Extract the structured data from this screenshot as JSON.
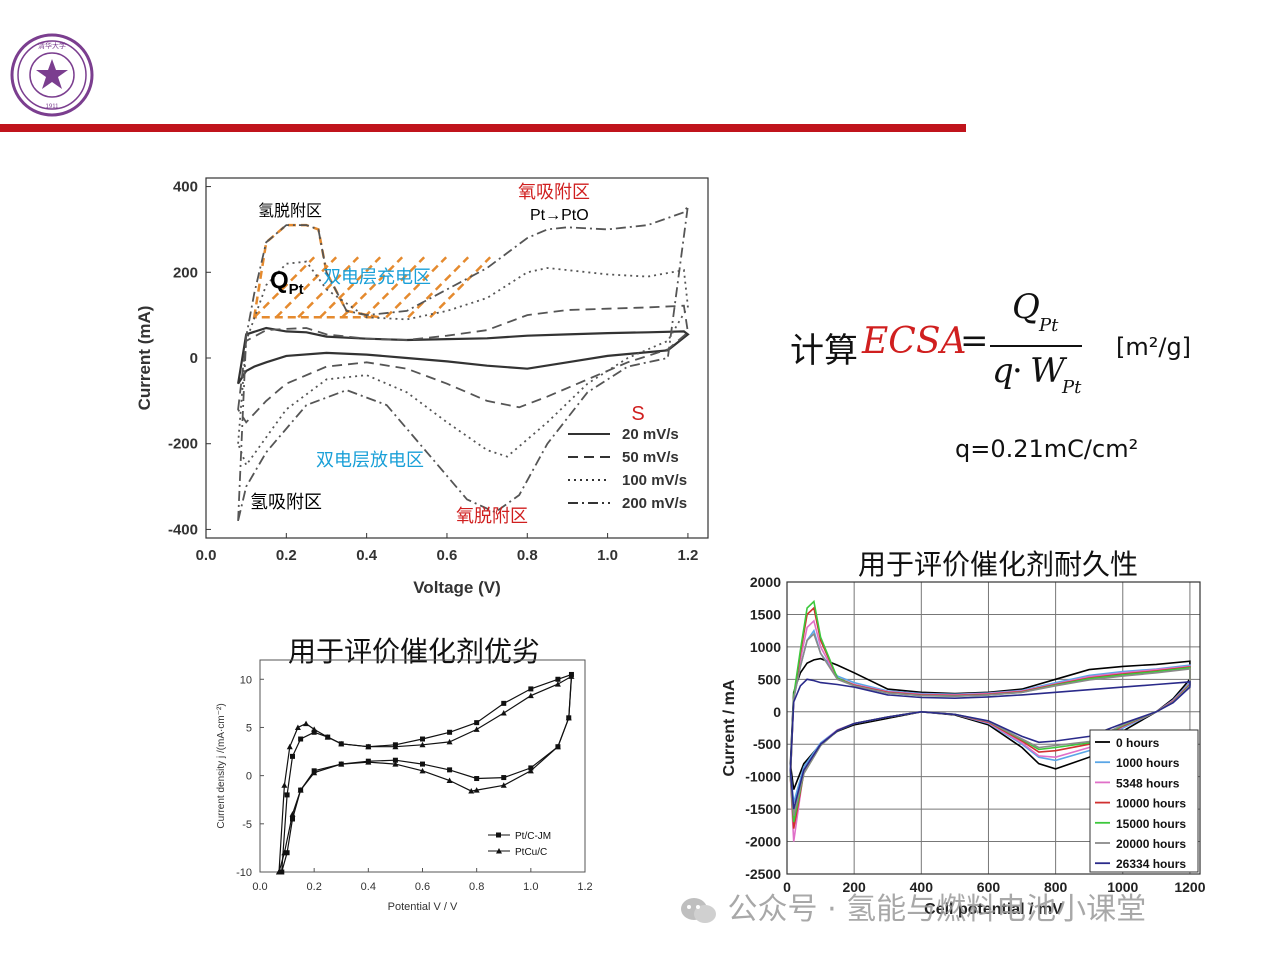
{
  "logo": {
    "icon": "university-seal-icon",
    "color": "#7b3e8f",
    "text_top": "清华大学",
    "text_ring": "TSINGHUA UNIVERSITY",
    "year": "1911"
  },
  "accent_color": "#c0141c",
  "formula": {
    "prefix": "计算",
    "lhs": "ECSA",
    "eq": "=",
    "numerator_main": "Q",
    "numerator_sub": "Pt",
    "denominator_q": "q",
    "denominator_dot": "·",
    "denominator_main": "W",
    "denominator_sub": "Pt",
    "units": "[m²/g]",
    "q_value": "q=0.21mC/cm²"
  },
  "captions": {
    "left": "用于评价催化剂优劣",
    "right": "用于评价催化剂耐久性"
  },
  "watermark": "公众号 · 氢能与燃料电池小课堂",
  "chart_data": [
    {
      "type": "line",
      "xlabel": "Voltage (V)",
      "ylabel": "Current (mA)",
      "xlim": [
        0.0,
        1.25
      ],
      "ylim": [
        -420,
        420
      ],
      "xticks": [
        "0.0",
        "0.2",
        "0.4",
        "0.6",
        "0.8",
        "1.0",
        "1.2"
      ],
      "yticks": [
        "-400",
        "-200",
        "0",
        "200",
        "400"
      ],
      "grid": false,
      "legend_title": "S",
      "legend_position": "bottom-right",
      "series": [
        {
          "name": "20 mV/s",
          "x": [
            0.08,
            0.1,
            0.15,
            0.2,
            0.25,
            0.3,
            0.4,
            0.5,
            0.6,
            0.7,
            0.8,
            0.9,
            1.0,
            1.1,
            1.19,
            1.2,
            1.15,
            1.0,
            0.9,
            0.8,
            0.7,
            0.6,
            0.5,
            0.4,
            0.3,
            0.2,
            0.15,
            0.12,
            0.1,
            0.08
          ],
          "y": [
            -60,
            55,
            70,
            62,
            60,
            50,
            45,
            42,
            44,
            46,
            52,
            55,
            58,
            60,
            62,
            55,
            18,
            5,
            -10,
            -25,
            -18,
            -8,
            0,
            8,
            12,
            5,
            -10,
            -20,
            -30,
            -60
          ]
        },
        {
          "name": "50 mV/s",
          "x": [
            0.08,
            0.1,
            0.15,
            0.2,
            0.25,
            0.3,
            0.4,
            0.5,
            0.6,
            0.7,
            0.8,
            0.9,
            1.0,
            1.1,
            1.19,
            1.2,
            1.15,
            1.05,
            0.95,
            0.85,
            0.78,
            0.7,
            0.6,
            0.5,
            0.4,
            0.3,
            0.2,
            0.15,
            0.1,
            0.08
          ],
          "y": [
            -120,
            40,
            65,
            68,
            70,
            55,
            45,
            42,
            52,
            65,
            100,
            112,
            115,
            118,
            122,
            60,
            20,
            -10,
            -50,
            -90,
            -115,
            -100,
            -60,
            -25,
            -10,
            -20,
            -60,
            -100,
            -150,
            -120
          ]
        },
        {
          "name": "100 mV/s",
          "x": [
            0.08,
            0.1,
            0.15,
            0.2,
            0.25,
            0.3,
            0.4,
            0.5,
            0.6,
            0.7,
            0.8,
            0.85,
            0.9,
            1.0,
            1.1,
            1.19,
            1.2,
            1.15,
            1.05,
            0.95,
            0.85,
            0.75,
            0.7,
            0.6,
            0.5,
            0.4,
            0.3,
            0.2,
            0.1,
            0.08
          ],
          "y": [
            -200,
            40,
            170,
            220,
            225,
            160,
            95,
            90,
            110,
            140,
            200,
            210,
            205,
            195,
            190,
            205,
            120,
            40,
            0,
            -60,
            -150,
            -230,
            -215,
            -150,
            -80,
            -40,
            -50,
            -120,
            -250,
            -200
          ]
        },
        {
          "name": "200 mV/s",
          "x": [
            0.08,
            0.1,
            0.12,
            0.15,
            0.2,
            0.25,
            0.28,
            0.3,
            0.35,
            0.4,
            0.5,
            0.6,
            0.7,
            0.8,
            0.85,
            0.9,
            1.0,
            1.1,
            1.19,
            1.2,
            1.15,
            1.05,
            0.95,
            0.85,
            0.78,
            0.72,
            0.65,
            0.55,
            0.45,
            0.35,
            0.25,
            0.15,
            0.1,
            0.08
          ],
          "y": [
            -380,
            50,
            150,
            270,
            310,
            310,
            300,
            200,
            110,
            100,
            110,
            160,
            210,
            280,
            300,
            305,
            300,
            310,
            340,
            355,
            0,
            -20,
            -80,
            -200,
            -320,
            -360,
            -330,
            -220,
            -110,
            -75,
            -110,
            -220,
            -300,
            -380
          ]
        }
      ],
      "annotations": [
        {
          "text": "氢脱附区",
          "color": "#000000"
        },
        {
          "text": "Q",
          "sub": "Pt",
          "color": "#000000"
        },
        {
          "text": "双电层充电区",
          "color": "#1aa0d8"
        },
        {
          "text": "氧吸附区",
          "color": "#d01f1f"
        },
        {
          "text": "Pt→PtO",
          "color": "#000000"
        },
        {
          "text": "双电层放电区",
          "color": "#1aa0d8"
        },
        {
          "text": "氢吸附区",
          "color": "#000000"
        },
        {
          "text": "氧脱附区",
          "color": "#d01f1f"
        }
      ],
      "hatch_color": "#e58a2e"
    },
    {
      "type": "line",
      "xlabel": "Potential  V / V",
      "ylabel": "Current density  j /(mA·cm⁻²)",
      "xlim": [
        0.0,
        1.2
      ],
      "ylim": [
        -10,
        12
      ],
      "xticks": [
        "0.0",
        "0.2",
        "0.4",
        "0.6",
        "0.8",
        "1.0",
        "1.2"
      ],
      "yticks": [
        "-10",
        "-5",
        "0",
        "5",
        "10"
      ],
      "legend_position": "bottom-right",
      "series": [
        {
          "name": "Pt/C-JM",
          "marker": "square",
          "x": [
            0.08,
            0.1,
            0.12,
            0.15,
            0.2,
            0.25,
            0.3,
            0.4,
            0.5,
            0.6,
            0.7,
            0.8,
            0.9,
            1.0,
            1.1,
            1.15,
            1.14,
            1.1,
            1.0,
            0.9,
            0.8,
            0.7,
            0.6,
            0.5,
            0.4,
            0.3,
            0.2,
            0.15,
            0.12,
            0.1,
            0.08
          ],
          "y": [
            -10,
            -2,
            2,
            3.8,
            4.5,
            4,
            3.3,
            3,
            3.2,
            3.8,
            4.5,
            5.5,
            7.5,
            9,
            10,
            10.5,
            6,
            3,
            0.8,
            -0.2,
            -0.3,
            0.6,
            1.2,
            1.6,
            1.5,
            1.2,
            0.5,
            -1.5,
            -4.5,
            -8,
            -10
          ]
        },
        {
          "name": "PtCu/C",
          "marker": "triangle",
          "x": [
            0.07,
            0.09,
            0.11,
            0.14,
            0.17,
            0.2,
            0.25,
            0.3,
            0.4,
            0.5,
            0.6,
            0.7,
            0.8,
            0.9,
            1.0,
            1.1,
            1.15,
            1.14,
            1.1,
            1.0,
            0.9,
            0.8,
            0.78,
            0.7,
            0.6,
            0.5,
            0.4,
            0.3,
            0.2,
            0.15,
            0.12,
            0.09,
            0.07
          ],
          "y": [
            -10,
            -1,
            3,
            5,
            5.4,
            4.8,
            4,
            3.3,
            3,
            3,
            3.2,
            3.5,
            4.8,
            6.5,
            8.3,
            9.5,
            10.3,
            6,
            3,
            0.5,
            -1,
            -1.5,
            -1.6,
            -0.5,
            0.5,
            1.2,
            1.4,
            1.2,
            0.3,
            -1.5,
            -4,
            -8,
            -10
          ]
        }
      ]
    },
    {
      "type": "line",
      "xlabel": "Cell potential / mV",
      "ylabel": "Current / mA",
      "xlim": [
        0,
        1230
      ],
      "ylim": [
        -2500,
        2000
      ],
      "xticks": [
        "0",
        "200",
        "400",
        "600",
        "800",
        "1000",
        "1200"
      ],
      "yticks": [
        "2000",
        "1500",
        "1000",
        "500",
        "0",
        "-500",
        "-1000",
        "-1500",
        "-2000",
        "-2500"
      ],
      "grid": true,
      "legend_position": "bottom-right",
      "series": [
        {
          "name": "0 hours",
          "color": "#000000",
          "x": [
            10,
            20,
            40,
            60,
            80,
            100,
            150,
            200,
            300,
            400,
            500,
            600,
            700,
            800,
            900,
            1000,
            1100,
            1200,
            1200,
            1150,
            1100,
            1000,
            900,
            800,
            750,
            700,
            600,
            500,
            400,
            300,
            200,
            150,
            100,
            50,
            20,
            10
          ],
          "y": [
            -800,
            300,
            600,
            750,
            800,
            820,
            720,
            600,
            350,
            300,
            280,
            300,
            350,
            500,
            650,
            700,
            730,
            780,
            500,
            200,
            0,
            -300,
            -700,
            -880,
            -800,
            -550,
            -200,
            -50,
            0,
            -100,
            -200,
            -300,
            -500,
            -800,
            -1200,
            -800
          ]
        },
        {
          "name": "1000 hours",
          "color": "#5aa6e6",
          "x": [
            10,
            20,
            40,
            60,
            80,
            100,
            150,
            200,
            300,
            400,
            500,
            600,
            700,
            800,
            900,
            1000,
            1100,
            1200,
            1200,
            1150,
            1100,
            1000,
            900,
            800,
            750,
            700,
            600,
            500,
            400,
            300,
            200,
            150,
            100,
            50,
            20,
            10
          ],
          "y": [
            -900,
            200,
            700,
            1100,
            1250,
            900,
            550,
            450,
            320,
            280,
            270,
            290,
            330,
            450,
            560,
            620,
            660,
            720,
            450,
            180,
            0,
            -250,
            -600,
            -750,
            -700,
            -500,
            -180,
            -40,
            0,
            -80,
            -180,
            -280,
            -480,
            -850,
            -1400,
            -900
          ]
        },
        {
          "name": "5348 hours",
          "color": "#e070c8",
          "x": [
            10,
            20,
            40,
            60,
            80,
            100,
            150,
            200,
            300,
            400,
            500,
            600,
            700,
            800,
            900,
            1000,
            1100,
            1200,
            1200,
            1150,
            1100,
            1000,
            900,
            800,
            750,
            700,
            600,
            500,
            400,
            300,
            200,
            150,
            100,
            50,
            20,
            10
          ],
          "y": [
            -1000,
            200,
            800,
            1300,
            1400,
            1000,
            520,
            420,
            310,
            270,
            260,
            280,
            320,
            430,
            540,
            600,
            650,
            700,
            430,
            170,
            0,
            -230,
            -550,
            -700,
            -680,
            -480,
            -170,
            -40,
            0,
            -80,
            -180,
            -280,
            -500,
            -900,
            -2000,
            -1000
          ]
        },
        {
          "name": "10000 hours",
          "color": "#d03030",
          "x": [
            10,
            20,
            40,
            60,
            80,
            100,
            150,
            200,
            300,
            400,
            500,
            600,
            700,
            800,
            900,
            1000,
            1100,
            1200,
            1200,
            1150,
            1100,
            1000,
            900,
            800,
            750,
            700,
            600,
            500,
            400,
            300,
            200,
            150,
            100,
            50,
            20,
            10
          ],
          "y": [
            -1000,
            200,
            900,
            1500,
            1600,
            1100,
            520,
            410,
            300,
            260,
            250,
            270,
            310,
            420,
            520,
            580,
            630,
            690,
            420,
            160,
            0,
            -220,
            -500,
            -600,
            -620,
            -450,
            -160,
            -40,
            0,
            -80,
            -180,
            -290,
            -520,
            -950,
            -1800,
            -1000
          ]
        },
        {
          "name": "15000 hours",
          "color": "#3cc83c",
          "x": [
            10,
            20,
            40,
            60,
            80,
            100,
            150,
            200,
            300,
            400,
            500,
            600,
            700,
            800,
            900,
            1000,
            1100,
            1200,
            1200,
            1150,
            1100,
            1000,
            900,
            800,
            750,
            700,
            600,
            500,
            400,
            300,
            200,
            150,
            100,
            50,
            20,
            10
          ],
          "y": [
            -1000,
            250,
            950,
            1600,
            1700,
            1150,
            520,
            400,
            290,
            250,
            240,
            260,
            300,
            410,
            510,
            570,
            620,
            680,
            410,
            150,
            0,
            -210,
            -480,
            -550,
            -580,
            -430,
            -150,
            -40,
            0,
            -80,
            -180,
            -290,
            -520,
            -950,
            -1700,
            -1000
          ]
        },
        {
          "name": "20000 hours",
          "color": "#8a8a8a",
          "x": [
            10,
            20,
            40,
            60,
            80,
            100,
            150,
            200,
            300,
            400,
            500,
            600,
            700,
            800,
            900,
            1000,
            1100,
            1200,
            1200,
            1150,
            1100,
            1000,
            900,
            800,
            750,
            700,
            600,
            500,
            400,
            300,
            200,
            150,
            100,
            50,
            20,
            10
          ],
          "y": [
            -1000,
            200,
            700,
            1100,
            1200,
            900,
            500,
            400,
            290,
            250,
            240,
            260,
            300,
            400,
            490,
            550,
            600,
            660,
            400,
            150,
            0,
            -200,
            -460,
            -520,
            -550,
            -420,
            -150,
            -40,
            0,
            -80,
            -180,
            -290,
            -520,
            -950,
            -1600,
            -1000
          ]
        },
        {
          "name": "26334 hours",
          "color": "#2a2a8a",
          "x": [
            10,
            20,
            40,
            60,
            80,
            100,
            150,
            200,
            300,
            400,
            500,
            600,
            700,
            800,
            900,
            1000,
            1100,
            1200,
            1200,
            1150,
            1100,
            1000,
            900,
            800,
            750,
            700,
            600,
            500,
            400,
            300,
            200,
            150,
            100,
            50,
            20,
            10
          ],
          "y": [
            -900,
            150,
            400,
            500,
            480,
            450,
            420,
            380,
            260,
            220,
            210,
            230,
            260,
            300,
            340,
            380,
            420,
            460,
            380,
            140,
            0,
            -180,
            -380,
            -450,
            -470,
            -380,
            -140,
            -40,
            0,
            -80,
            -180,
            -290,
            -500,
            -900,
            -1500,
            -900
          ]
        }
      ]
    }
  ]
}
